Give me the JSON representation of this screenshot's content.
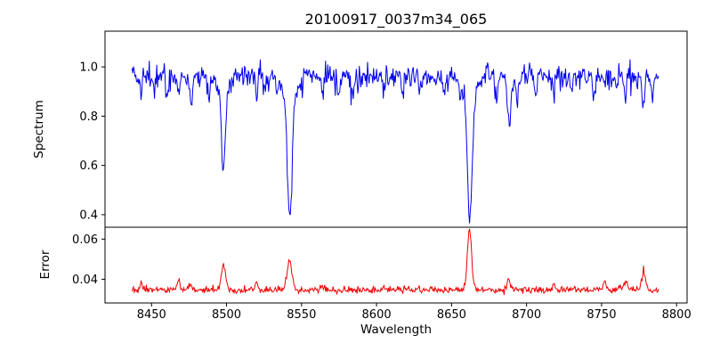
{
  "chart_data": {
    "type": "line",
    "title": "20100917_0037m34_065",
    "xlabel": "Wavelength",
    "xlim": [
      8419,
      8807
    ],
    "xticks": [
      8450,
      8500,
      8550,
      8600,
      8650,
      8700,
      8750,
      8800
    ],
    "x_range": [
      8437,
      8788
    ],
    "x_step": 0.5,
    "grid": false,
    "legend": "none",
    "subplots": [
      {
        "name": "spectrum",
        "ylabel": "Spectrum",
        "color": "#0000ee",
        "ylim": [
          0.349,
          1.145
        ],
        "yticks": [
          0.4,
          0.6,
          0.8,
          1.0
        ],
        "ytick_labels": [
          "0.4",
          "0.6",
          "0.8",
          "1.0"
        ],
        "continuum": 0.985,
        "noise_sigma": 0.018,
        "absorption_noise": 0.028,
        "major_lines": [
          {
            "center": 8498.0,
            "depth": 0.38,
            "sigma": 1.3,
            "wing_sigma": 4.0,
            "wing_frac": 0.18
          },
          {
            "center": 8542.1,
            "depth": 0.57,
            "sigma": 1.5,
            "wing_sigma": 4.5,
            "wing_frac": 0.18
          },
          {
            "center": 8662.1,
            "depth": 0.61,
            "sigma": 1.4,
            "wing_sigma": 4.5,
            "wing_frac": 0.18
          },
          {
            "center": 8688.6,
            "depth": 0.21,
            "sigma": 1.0,
            "wing_sigma": 3.0,
            "wing_frac": 0.15
          }
        ],
        "minor_lines": [
          {
            "center": 8443,
            "depth": 0.09
          },
          {
            "center": 8452,
            "depth": 0.07
          },
          {
            "center": 8460,
            "depth": 0.1
          },
          {
            "center": 8468,
            "depth": 0.06
          },
          {
            "center": 8476,
            "depth": 0.11
          },
          {
            "center": 8488,
            "depth": 0.07
          },
          {
            "center": 8520,
            "depth": 0.11
          },
          {
            "center": 8526,
            "depth": 0.07
          },
          {
            "center": 8534,
            "depth": 0.06
          },
          {
            "center": 8564,
            "depth": 0.09
          },
          {
            "center": 8575,
            "depth": 0.1
          },
          {
            "center": 8584,
            "depth": 0.07
          },
          {
            "center": 8605,
            "depth": 0.09
          },
          {
            "center": 8617,
            "depth": 0.1
          },
          {
            "center": 8629,
            "depth": 0.08
          },
          {
            "center": 8645,
            "depth": 0.07
          },
          {
            "center": 8680,
            "depth": 0.08
          },
          {
            "center": 8694,
            "depth": 0.1
          },
          {
            "center": 8706,
            "depth": 0.08
          },
          {
            "center": 8718,
            "depth": 0.06
          },
          {
            "center": 8730,
            "depth": 0.08
          },
          {
            "center": 8745,
            "depth": 0.09
          },
          {
            "center": 8760,
            "depth": 0.06
          },
          {
            "center": 8766,
            "depth": 0.08
          },
          {
            "center": 8778,
            "depth": 0.12
          },
          {
            "center": 8784,
            "depth": 0.08
          }
        ]
      },
      {
        "name": "error",
        "ylabel": "Error",
        "color": "#ee0000",
        "ylim": [
          0.0282,
          0.0659
        ],
        "yticks": [
          0.04,
          0.06
        ],
        "ytick_labels": [
          "0.04",
          "0.06"
        ],
        "baseline": 0.034,
        "noise_sigma": 0.0006,
        "spike_noise": 0.0009,
        "peaks": [
          {
            "center": 8430,
            "height": 0.0075,
            "sigma": 1.3
          },
          {
            "center": 8443,
            "height": 0.003,
            "sigma": 0.9
          },
          {
            "center": 8468,
            "height": 0.0045,
            "sigma": 1.0
          },
          {
            "center": 8476,
            "height": 0.003,
            "sigma": 0.9
          },
          {
            "center": 8498,
            "height": 0.0125,
            "sigma": 1.4
          },
          {
            "center": 8520,
            "height": 0.0035,
            "sigma": 0.9
          },
          {
            "center": 8542,
            "height": 0.0145,
            "sigma": 1.6
          },
          {
            "center": 8564,
            "height": 0.002,
            "sigma": 0.8
          },
          {
            "center": 8605,
            "height": 0.002,
            "sigma": 0.8
          },
          {
            "center": 8662,
            "height": 0.0305,
            "sigma": 1.4
          },
          {
            "center": 8688,
            "height": 0.006,
            "sigma": 1.0
          },
          {
            "center": 8718,
            "height": 0.002,
            "sigma": 0.8
          },
          {
            "center": 8752,
            "height": 0.0045,
            "sigma": 1.0
          },
          {
            "center": 8766,
            "height": 0.004,
            "sigma": 1.0
          },
          {
            "center": 8778,
            "height": 0.009,
            "sigma": 1.2
          }
        ]
      }
    ]
  }
}
